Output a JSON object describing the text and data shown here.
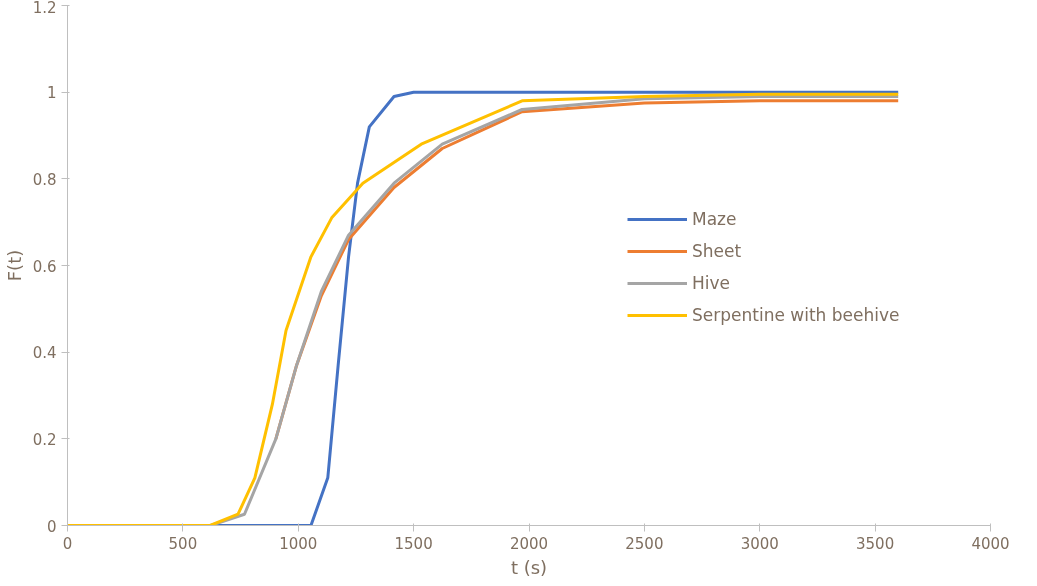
{
  "chart_data": {
    "type": "line",
    "xlabel": "t (s)",
    "ylabel": "F(t)",
    "xlim": [
      0,
      4000
    ],
    "ylim": [
      0,
      1.2
    ],
    "xticks": [
      0,
      500,
      1000,
      1500,
      2000,
      2500,
      3000,
      3500,
      4000
    ],
    "yticks": [
      0,
      0.2,
      0.4,
      0.6,
      0.8,
      1,
      1.2
    ],
    "grid": false,
    "legend": "right",
    "marker": "none",
    "line_style": "solid",
    "series": [
      {
        "name": "Maze",
        "color": "#4472c4",
        "x": [
          0,
          500,
          1000,
          1055,
          1128,
          1173,
          1218,
          1257,
          1308,
          1415,
          1500,
          2000,
          3000,
          3600
        ],
        "values": [
          0,
          0,
          0,
          0,
          0.11,
          0.37,
          0.62,
          0.79,
          0.92,
          0.99,
          1,
          1,
          1,
          1
        ]
      },
      {
        "name": "Sheet",
        "color": "#ed7d31",
        "x": [
          903,
          993,
          1100,
          1218,
          1415,
          1624,
          1970,
          2500,
          3000,
          3600
        ],
        "values": [
          0.2,
          0.37,
          0.53,
          0.66,
          0.78,
          0.87,
          0.955,
          0.975,
          0.98,
          0.98
        ]
      },
      {
        "name": "Hive",
        "color": "#a5a5a5",
        "x": [
          0,
          500,
          620,
          767,
          903,
          993,
          1100,
          1218,
          1415,
          1624,
          1970,
          2500,
          3000,
          3600
        ],
        "values": [
          0,
          0,
          0,
          0.026,
          0.2,
          0.37,
          0.54,
          0.67,
          0.79,
          0.88,
          0.96,
          0.985,
          0.99,
          0.99
        ]
      },
      {
        "name": "Serpentine with beehive",
        "color": "#ffc000",
        "x": [
          0,
          500,
          618,
          739,
          812,
          888,
          947,
          1055,
          1145,
          1280,
          1533,
          1970,
          2500,
          3000,
          3600
        ],
        "values": [
          0,
          0,
          0,
          0.026,
          0.11,
          0.28,
          0.45,
          0.62,
          0.71,
          0.79,
          0.88,
          0.98,
          0.99,
          0.995,
          0.995
        ]
      }
    ]
  }
}
